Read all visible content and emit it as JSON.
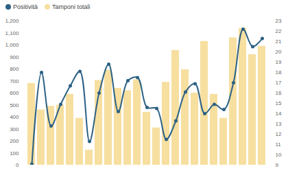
{
  "chart_data": {
    "type": "bar",
    "categories": [
      null,
      null,
      null,
      null,
      null,
      null,
      null,
      null,
      null,
      null,
      null,
      null,
      null,
      null,
      null,
      null,
      null,
      null,
      null,
      null,
      null,
      null,
      null,
      null,
      null
    ],
    "series": [
      {
        "name": "Positività",
        "type": "line",
        "color": "#2c6184",
        "marker": "circle",
        "axis": "y2",
        "values": [
          9.1,
          18.0,
          12.8,
          14.9,
          16.7,
          18.1,
          11.3,
          16.0,
          18.8,
          14.2,
          17.2,
          17.5,
          14.6,
          14.5,
          11.5,
          13.3,
          16.1,
          16.9,
          14.0,
          14.9,
          14.4,
          17.0,
          22.2,
          20.5,
          21.3
        ]
      },
      {
        "name": "Tamponi totali",
        "type": "bar",
        "color": "#f7dfa0",
        "values": [
          680,
          460,
          490,
          500,
          590,
          390,
          125,
          705,
          790,
          640,
          620,
          710,
          440,
          310,
          690,
          955,
          795,
          600,
          1030,
          590,
          390,
          1060,
          1140,
          920,
          990
        ]
      }
    ],
    "ylim": [
      0,
      1200
    ],
    "yticks": [
      0,
      100,
      200,
      300,
      400,
      500,
      600,
      700,
      800,
      900,
      1000,
      1100,
      1200
    ],
    "y2lim": [
      9,
      23
    ],
    "y2ticks": [
      9,
      10,
      11,
      12,
      13,
      14,
      15,
      16,
      17,
      18,
      19,
      20,
      21,
      22,
      23
    ],
    "legend": "top-left",
    "grid": false
  }
}
